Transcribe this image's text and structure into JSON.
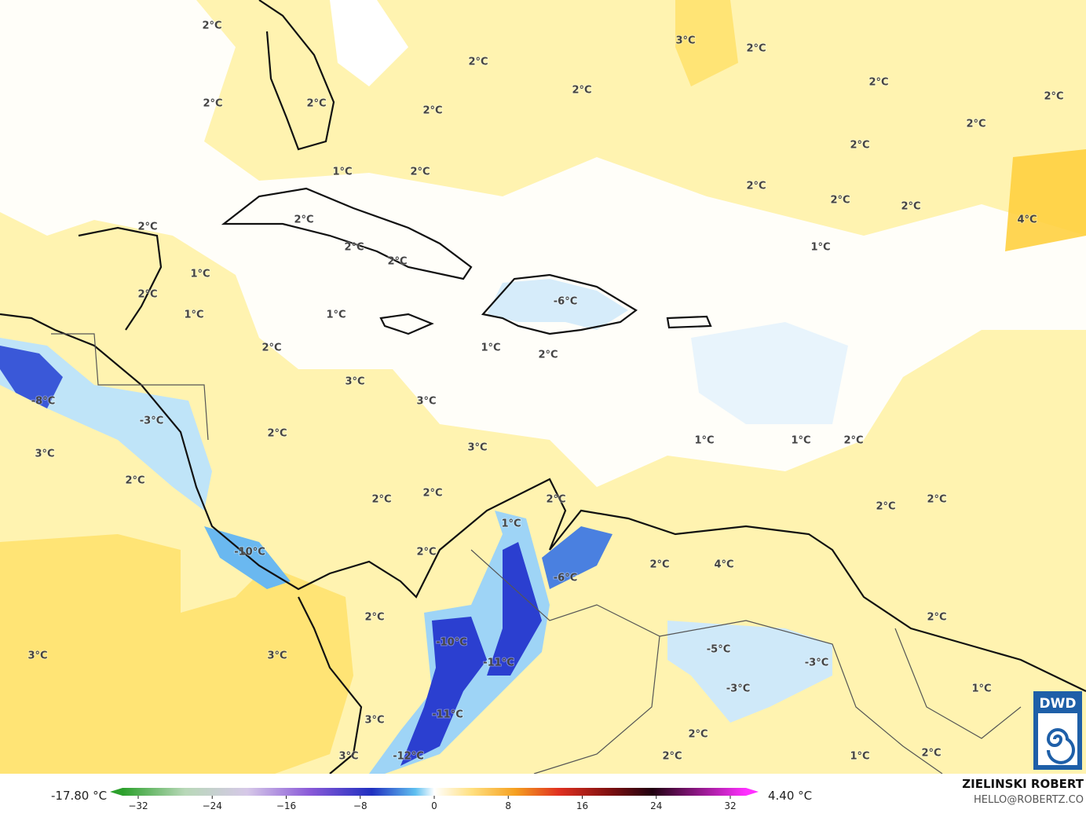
{
  "map": {
    "labels": [
      "3°C",
      "2°C",
      "2°C",
      "2°C",
      "2°C",
      "2°C",
      "2°C",
      "2°C",
      "2°C",
      "2°C",
      "2°C",
      "2°C",
      "1°C",
      "2°C",
      "2°C",
      "2°C",
      "2°C",
      "4°C",
      "2°C",
      "2°C",
      "2°C",
      "2°C",
      "1°C",
      "1°C",
      "2°C",
      "-6°C",
      "1°C",
      "1°C",
      "1°C",
      "2°C",
      "2°C",
      "3°C",
      "-8°C",
      "3°C",
      "-3°C",
      "2°C",
      "1°C",
      "1°C",
      "2°C",
      "3°C",
      "3°C",
      "2°C",
      "2°C",
      "2°C",
      "2°C",
      "2°C",
      "2°C",
      "1°C",
      "-10°C",
      "2°C",
      "2°C",
      "4°C",
      "-6°C",
      "2°C",
      "2°C",
      "3°C",
      "3°C",
      "-10°C",
      "-5°C",
      "-3°C",
      "-11°C",
      "-3°C",
      "1°C",
      "3°C",
      "-11°C",
      "2°C",
      "3°C",
      "-12°C",
      "2°C",
      "1°C",
      "2°C"
    ]
  },
  "colorbar": {
    "min_label": "-17.80 °C",
    "max_label": "4.40 °C",
    "ticks": [
      "−32",
      "−24",
      "−16",
      "−8",
      "0",
      "8",
      "16",
      "24",
      "32"
    ]
  },
  "credit": {
    "name": "ZIELINSKI ROBERT",
    "contact": "HELLO@ROBERTZ.CO"
  },
  "logo": {
    "text": "DWD"
  }
}
